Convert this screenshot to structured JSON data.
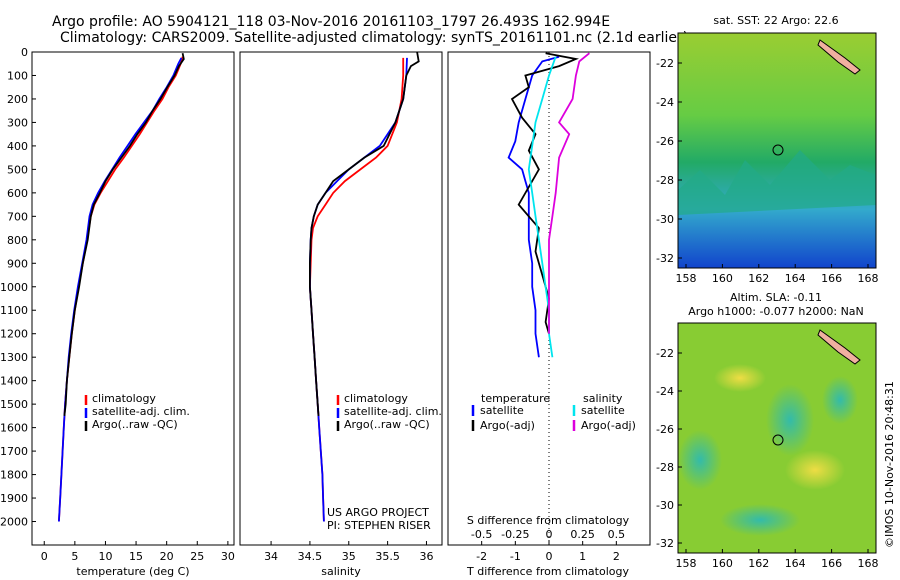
{
  "header": {
    "line1": "Argo profile: AO 5904121_118 03-Nov-2016 20161103_1797 26.493S 162.994E",
    "line2": "Climatology: CARS2009. Satellite-adjusted climatology: synTS_20161101.nc (2.1d earlier)"
  },
  "colors": {
    "clim": "#ff0000",
    "sat": "#0000ff",
    "argo": "#000000",
    "sat_s": "#00e5ee",
    "argo_s": "#dd00dd"
  },
  "chart_data": [
    {
      "type": "line",
      "name": "temperature",
      "xlabel": "temperature (deg C)",
      "ylabel": "depth",
      "xlim": [
        -2,
        31
      ],
      "ylim": [
        0,
        2100
      ],
      "xticks": [
        0,
        5,
        10,
        15,
        20,
        25,
        30
      ],
      "yticks": [
        0,
        100,
        200,
        300,
        400,
        500,
        600,
        700,
        800,
        900,
        1000,
        1100,
        1200,
        1300,
        1400,
        1500,
        1600,
        1700,
        1800,
        1900,
        2000
      ],
      "legend": [
        "climatology",
        "satellite-adj. clim.",
        "Argo(..raw -QC)"
      ],
      "series": [
        {
          "name": "climatology",
          "color": "#ff0000",
          "points": [
            [
              22.6,
              20
            ],
            [
              22.3,
              50
            ],
            [
              21.5,
              100
            ],
            [
              20.3,
              150
            ],
            [
              19.3,
              200
            ],
            [
              18.0,
              250
            ],
            [
              16.8,
              300
            ],
            [
              15.6,
              350
            ],
            [
              14.3,
              400
            ],
            [
              13.0,
              450
            ],
            [
              11.6,
              500
            ],
            [
              10.4,
              550
            ],
            [
              9.2,
              600
            ],
            [
              8.2,
              650
            ],
            [
              7.6,
              700
            ],
            [
              7.0,
              800
            ],
            [
              6.3,
              900
            ],
            [
              5.6,
              1000
            ],
            [
              5.0,
              1100
            ],
            [
              4.5,
              1200
            ],
            [
              4.1,
              1300
            ],
            [
              3.7,
              1400
            ],
            [
              3.4,
              1500
            ],
            [
              3.2,
              1600
            ],
            [
              3.0,
              1700
            ],
            [
              2.8,
              1800
            ],
            [
              2.6,
              1900
            ],
            [
              2.4,
              2000
            ]
          ]
        },
        {
          "name": "satellite-adj. clim.",
          "color": "#0000ff",
          "points": [
            [
              22.4,
              25
            ],
            [
              21.9,
              50
            ],
            [
              21.1,
              100
            ],
            [
              20.0,
              150
            ],
            [
              18.8,
              200
            ],
            [
              17.7,
              250
            ],
            [
              16.3,
              300
            ],
            [
              14.9,
              350
            ],
            [
              13.6,
              400
            ],
            [
              12.3,
              450
            ],
            [
              11.1,
              500
            ],
            [
              9.9,
              550
            ],
            [
              8.8,
              600
            ],
            [
              7.9,
              650
            ],
            [
              7.4,
              700
            ],
            [
              6.9,
              800
            ],
            [
              6.2,
              900
            ],
            [
              5.5,
              1000
            ],
            [
              4.9,
              1100
            ],
            [
              4.4,
              1200
            ],
            [
              4.0,
              1300
            ],
            [
              3.7,
              1400
            ],
            [
              3.4,
              1500
            ],
            [
              3.2,
              1600
            ],
            [
              3.0,
              1700
            ],
            [
              2.8,
              1800
            ],
            [
              2.6,
              1900
            ],
            [
              2.4,
              2000
            ]
          ]
        },
        {
          "name": "Argo(..raw -QC)",
          "color": "#000000",
          "points": [
            [
              22.6,
              5
            ],
            [
              22.8,
              30
            ],
            [
              22.0,
              60
            ],
            [
              21.3,
              100
            ],
            [
              20.1,
              150
            ],
            [
              19.0,
              200
            ],
            [
              17.7,
              250
            ],
            [
              16.6,
              300
            ],
            [
              15.2,
              350
            ],
            [
              14.0,
              400
            ],
            [
              12.6,
              450
            ],
            [
              11.2,
              500
            ],
            [
              10.0,
              550
            ],
            [
              9.1,
              600
            ],
            [
              8.1,
              650
            ],
            [
              7.6,
              700
            ],
            [
              7.1,
              800
            ],
            [
              6.3,
              900
            ],
            [
              5.7,
              1000
            ],
            [
              5.0,
              1100
            ],
            [
              4.5,
              1200
            ],
            [
              4.1,
              1300
            ],
            [
              3.7,
              1400
            ],
            [
              3.5,
              1500
            ],
            [
              3.3,
              1550
            ]
          ]
        }
      ]
    },
    {
      "type": "line",
      "name": "salinity",
      "xlabel": "salinity",
      "xlim": [
        33.6,
        36.2
      ],
      "ylim": [
        0,
        2100
      ],
      "xticks": [
        34,
        34.5,
        35,
        35.5,
        36
      ],
      "legend": [
        "climatology",
        "satellite-adj. clim.",
        "Argo(..raw -QC)"
      ],
      "series": [
        {
          "name": "climatology",
          "color": "#ff0000",
          "points": [
            [
              35.7,
              25
            ],
            [
              35.7,
              100
            ],
            [
              35.68,
              200
            ],
            [
              35.62,
              300
            ],
            [
              35.5,
              400
            ],
            [
              35.35,
              450
            ],
            [
              35.15,
              500
            ],
            [
              34.95,
              550
            ],
            [
              34.8,
              600
            ],
            [
              34.7,
              650
            ],
            [
              34.6,
              700
            ],
            [
              34.54,
              750
            ],
            [
              34.52,
              800
            ],
            [
              34.51,
              900
            ],
            [
              34.5,
              1000
            ],
            [
              34.52,
              1100
            ],
            [
              34.54,
              1200
            ],
            [
              34.56,
              1300
            ],
            [
              34.58,
              1400
            ],
            [
              34.6,
              1500
            ],
            [
              34.62,
              1600
            ],
            [
              34.64,
              1700
            ],
            [
              34.66,
              1800
            ],
            [
              34.67,
              1900
            ],
            [
              34.68,
              2000
            ]
          ]
        },
        {
          "name": "satellite-adj. clim.",
          "color": "#0000ff",
          "points": [
            [
              35.75,
              25
            ],
            [
              35.74,
              100
            ],
            [
              35.7,
              200
            ],
            [
              35.6,
              300
            ],
            [
              35.4,
              400
            ],
            [
              35.2,
              450
            ],
            [
              35.0,
              500
            ],
            [
              34.85,
              550
            ],
            [
              34.7,
              600
            ],
            [
              34.6,
              650
            ],
            [
              34.55,
              700
            ],
            [
              34.52,
              750
            ],
            [
              34.51,
              800
            ],
            [
              34.5,
              900
            ],
            [
              34.5,
              1000
            ],
            [
              34.52,
              1100
            ],
            [
              34.54,
              1200
            ],
            [
              34.56,
              1300
            ],
            [
              34.58,
              1400
            ],
            [
              34.6,
              1500
            ],
            [
              34.62,
              1600
            ],
            [
              34.64,
              1700
            ],
            [
              34.66,
              1800
            ],
            [
              34.67,
              1900
            ],
            [
              34.68,
              2000
            ]
          ]
        },
        {
          "name": "Argo(..raw -QC)",
          "color": "#000000",
          "points": [
            [
              35.88,
              0
            ],
            [
              35.9,
              40
            ],
            [
              35.8,
              60
            ],
            [
              35.74,
              100
            ],
            [
              35.7,
              200
            ],
            [
              35.6,
              300
            ],
            [
              35.45,
              400
            ],
            [
              35.2,
              450
            ],
            [
              35.0,
              500
            ],
            [
              34.8,
              550
            ],
            [
              34.7,
              600
            ],
            [
              34.6,
              650
            ],
            [
              34.55,
              700
            ],
            [
              34.52,
              750
            ],
            [
              34.51,
              800
            ],
            [
              34.5,
              900
            ],
            [
              34.5,
              1000
            ],
            [
              34.52,
              1100
            ],
            [
              34.54,
              1200
            ],
            [
              34.56,
              1300
            ],
            [
              34.58,
              1400
            ],
            [
              34.6,
              1500
            ],
            [
              34.61,
              1550
            ]
          ]
        }
      ]
    },
    {
      "type": "line",
      "name": "difference",
      "xlabel_top": "S difference from climatology",
      "xlabel": "T difference from climatology",
      "xlim": [
        -3,
        3
      ],
      "ylim": [
        0,
        2100
      ],
      "xticks_T": [
        -2,
        -1,
        0,
        1,
        2
      ],
      "xticks_S": [
        "-0.5",
        "-0.25",
        "0",
        "0.25",
        "0.5"
      ],
      "xticks_S_pos": [
        -2,
        -1,
        0,
        1,
        2
      ],
      "legend_title_T": "temperature",
      "legend_title_S": "salinity",
      "legend": [
        "satellite",
        "Argo(-adj)",
        "satellite",
        "Argo(-adj)"
      ],
      "series": [
        {
          "name": "T satellite",
          "color": "#0000ff",
          "points": [
            [
              0.3,
              20
            ],
            [
              -0.2,
              40
            ],
            [
              -0.5,
              100
            ],
            [
              -0.7,
              200
            ],
            [
              -0.9,
              300
            ],
            [
              -1.0,
              380
            ],
            [
              -1.2,
              450
            ],
            [
              -0.8,
              500
            ],
            [
              -0.7,
              550
            ],
            [
              -0.6,
              600
            ],
            [
              -0.6,
              700
            ],
            [
              -0.6,
              800
            ],
            [
              -0.5,
              900
            ],
            [
              -0.5,
              1000
            ],
            [
              -0.4,
              1100
            ],
            [
              -0.4,
              1200
            ],
            [
              -0.3,
              1300
            ]
          ]
        },
        {
          "name": "T Argo",
          "color": "#000000",
          "points": [
            [
              -0.1,
              5
            ],
            [
              0.8,
              30
            ],
            [
              0.3,
              60
            ],
            [
              -0.7,
              100
            ],
            [
              -0.6,
              150
            ],
            [
              -1.1,
              200
            ],
            [
              -0.8,
              280
            ],
            [
              -0.4,
              350
            ],
            [
              -0.6,
              420
            ],
            [
              -0.3,
              500
            ],
            [
              -0.9,
              650
            ],
            [
              -0.3,
              750
            ],
            [
              -0.4,
              850
            ],
            [
              -0.2,
              950
            ],
            [
              0.0,
              1050
            ],
            [
              -0.1,
              1150
            ],
            [
              0.0,
              1200
            ]
          ]
        },
        {
          "name": "S satellite",
          "color": "#00e5ee",
          "points": [
            [
              0.2,
              20
            ],
            [
              0.0,
              100
            ],
            [
              -0.2,
              200
            ],
            [
              -0.4,
              300
            ],
            [
              -0.5,
              400
            ],
            [
              -0.6,
              500
            ],
            [
              -0.5,
              600
            ],
            [
              -0.4,
              700
            ],
            [
              -0.3,
              800
            ],
            [
              -0.2,
              900
            ],
            [
              -0.1,
              1000
            ],
            [
              0.0,
              1100
            ],
            [
              0.0,
              1200
            ],
            [
              0.1,
              1300
            ]
          ]
        },
        {
          "name": "S Argo",
          "color": "#dd00dd",
          "points": [
            [
              1.2,
              5
            ],
            [
              0.9,
              40
            ],
            [
              0.8,
              100
            ],
            [
              0.7,
              200
            ],
            [
              0.3,
              300
            ],
            [
              0.6,
              350
            ],
            [
              0.3,
              450
            ],
            [
              0.2,
              600
            ],
            [
              0.1,
              700
            ],
            [
              0.0,
              800
            ],
            [
              0.0,
              900
            ],
            [
              0.0,
              1000
            ],
            [
              0.0,
              1100
            ],
            [
              0.0,
              1200
            ]
          ]
        }
      ]
    }
  ],
  "maps": {
    "sst": {
      "title": "sat. SST: 22 Argo: 22.6",
      "yticks": [
        "-22",
        "-24",
        "-26",
        "-28",
        "-30",
        "-32"
      ],
      "xticks": [
        "158",
        "160",
        "162",
        "164",
        "166",
        "168"
      ]
    },
    "sla": {
      "title1": "Altim. SLA: -0.11",
      "title2": "Argo h1000: -0.077 h2000: NaN",
      "yticks": [
        "-22",
        "-24",
        "-26",
        "-28",
        "-30",
        "-32"
      ],
      "xticks": [
        "158",
        "160",
        "162",
        "164",
        "166",
        "168"
      ]
    }
  },
  "credits": {
    "project": "US ARGO PROJECT",
    "pi": "PI: STEPHEN RISER",
    "stamp": "©IMOS 10-Nov-2016 20:48:31"
  }
}
